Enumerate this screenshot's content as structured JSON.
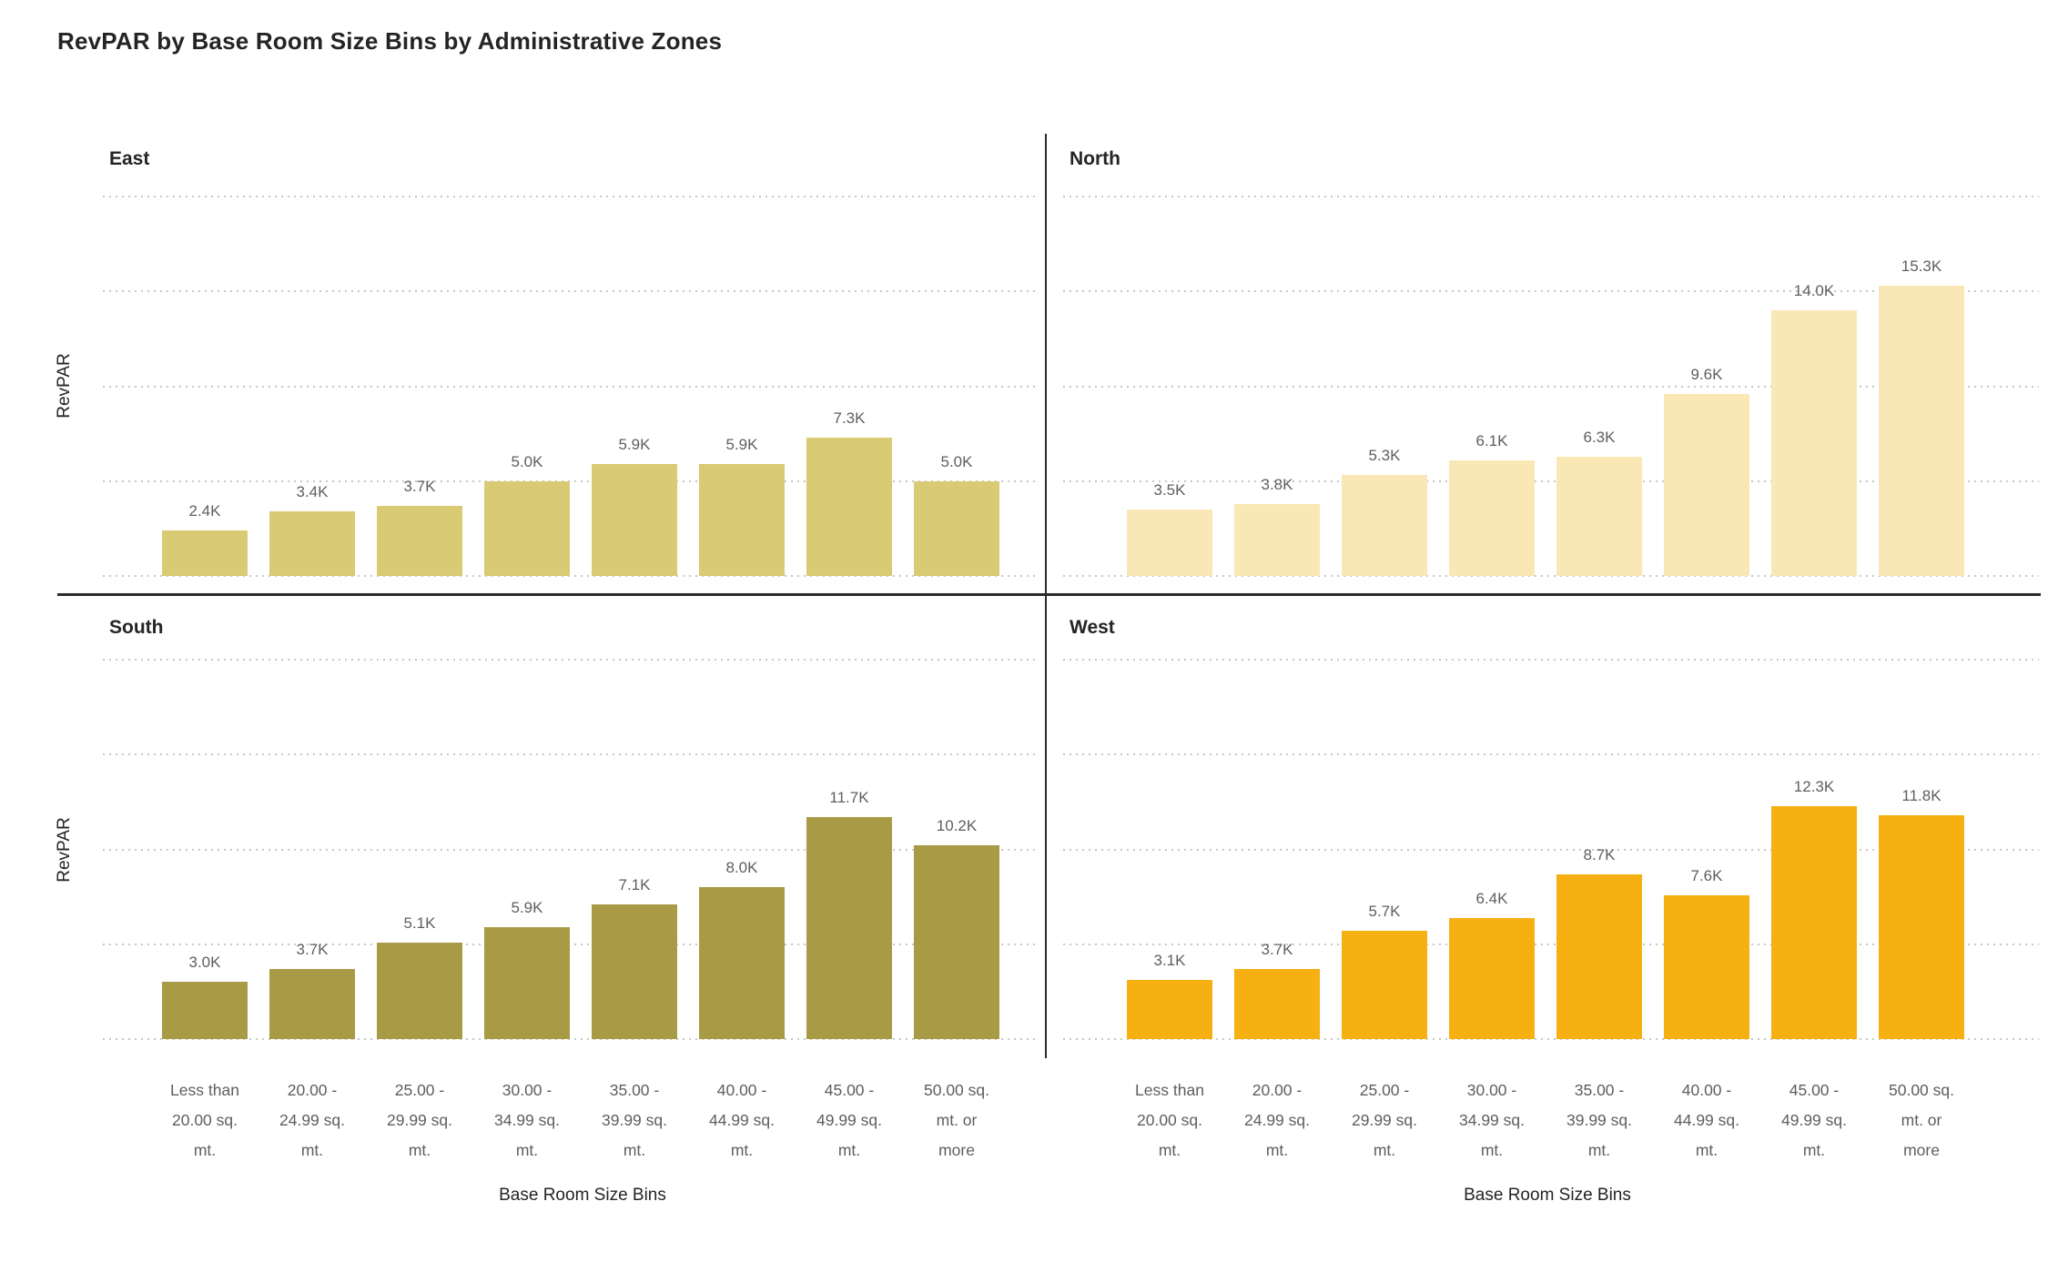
{
  "title": "RevPAR by Base Room Size Bins by Administrative Zones",
  "shared": {
    "y_axis_label": "RevPAR",
    "x_axis_label": "Base Room Size Bins"
  },
  "chart_data": {
    "type": "bar",
    "layout": "2x2 small multiples by administrative zone, shared axes",
    "title": "RevPAR by Base Room Size Bins by Administrative Zones",
    "xlabel": "Base Room Size Bins",
    "ylabel": "RevPAR",
    "ylim": [
      0,
      20000
    ],
    "gridlines_values": [
      0,
      5000,
      10000,
      15000,
      20000
    ],
    "grid_style": "dotted horizontal",
    "value_format": "thousands with K suffix",
    "categories": [
      "Less than 20.00 sq. mt.",
      "20.00 - 24.99 sq. mt.",
      "25.00 - 29.99 sq. mt.",
      "30.00 - 34.99 sq. mt.",
      "35.00 - 39.99 sq. mt.",
      "40.00 - 44.99 sq. mt.",
      "45.00 - 49.99 sq. mt.",
      "50.00 sq. mt. or more"
    ],
    "category_lines": [
      [
        "Less than",
        "20.00 sq.",
        "mt."
      ],
      [
        "20.00 -",
        "24.99 sq.",
        "mt."
      ],
      [
        "25.00 -",
        "29.99 sq.",
        "mt."
      ],
      [
        "30.00 -",
        "34.99 sq.",
        "mt."
      ],
      [
        "35.00 -",
        "39.99 sq.",
        "mt."
      ],
      [
        "40.00 -",
        "44.99 sq.",
        "mt."
      ],
      [
        "45.00 -",
        "49.99 sq.",
        "mt."
      ],
      [
        "50.00 sq.",
        "mt. or",
        "more"
      ]
    ],
    "panels": [
      {
        "zone": "East",
        "color": "#D9CA74",
        "values": [
          2400,
          3400,
          3700,
          5000,
          5900,
          5900,
          7300,
          5000
        ],
        "labels": [
          "2.4K",
          "3.4K",
          "3.7K",
          "5.0K",
          "5.9K",
          "5.9K",
          "7.3K",
          "5.0K"
        ]
      },
      {
        "zone": "North",
        "color": "#F9E8B6",
        "values": [
          3500,
          3800,
          5300,
          6100,
          6300,
          9600,
          14000,
          15300
        ],
        "labels": [
          "3.5K",
          "3.8K",
          "5.3K",
          "6.1K",
          "6.3K",
          "9.6K",
          "14.0K",
          "15.3K"
        ]
      },
      {
        "zone": "South",
        "color": "#A99B45",
        "values": [
          3000,
          3700,
          5100,
          5900,
          7100,
          8000,
          11700,
          10200
        ],
        "labels": [
          "3.0K",
          "3.7K",
          "5.1K",
          "5.9K",
          "7.1K",
          "8.0K",
          "11.7K",
          "10.2K"
        ]
      },
      {
        "zone": "West",
        "color": "#F6B012",
        "values": [
          3100,
          3700,
          5700,
          6400,
          8700,
          7600,
          12300,
          11800
        ],
        "labels": [
          "3.1K",
          "3.7K",
          "5.7K",
          "6.4K",
          "8.7K",
          "7.6K",
          "12.3K",
          "11.8K"
        ]
      }
    ],
    "zone_colors": {
      "East": "#D9CA74",
      "North": "#F9E8B6",
      "South": "#A99B45",
      "West": "#F6B012"
    }
  }
}
